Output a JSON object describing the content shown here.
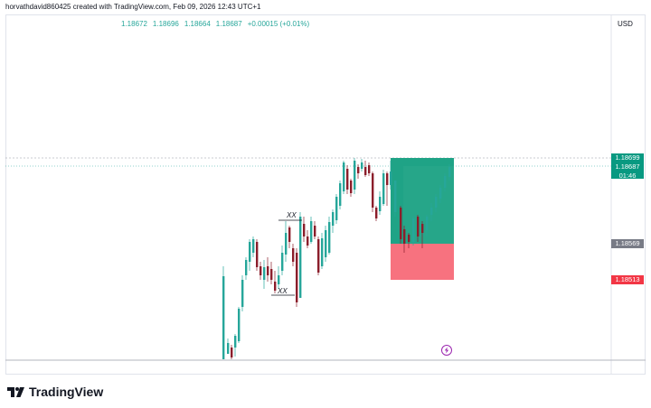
{
  "header": {
    "credit": "horvathdavid860425 created with TradingView.com, Feb 09, 2026 12:43 UTC+1"
  },
  "ohlc": {
    "open": "1.18672",
    "high": "1.18696",
    "low": "1.18664",
    "close": "1.18687",
    "change": "+0.00015 (+0.01%)"
  },
  "axis": {
    "currency": "USD"
  },
  "price_labels": {
    "target": "1.18699",
    "current": "1.18687",
    "countdown": "01:46",
    "entry": "1.18569",
    "stop": "1.18513"
  },
  "annotations": {
    "upper": "XX",
    "lower": "XX"
  },
  "brand": {
    "name": "TradingView"
  },
  "colors": {
    "up": "#26a69a",
    "down": "#8b1e2b",
    "profit": "#1fa386",
    "loss": "#f7727f",
    "current_tag": "#089981",
    "entry_tag": "#787b86",
    "stop_tag": "#f23645"
  },
  "icons": [
    "lightning-icon",
    "tradingview-logo-icon"
  ]
}
